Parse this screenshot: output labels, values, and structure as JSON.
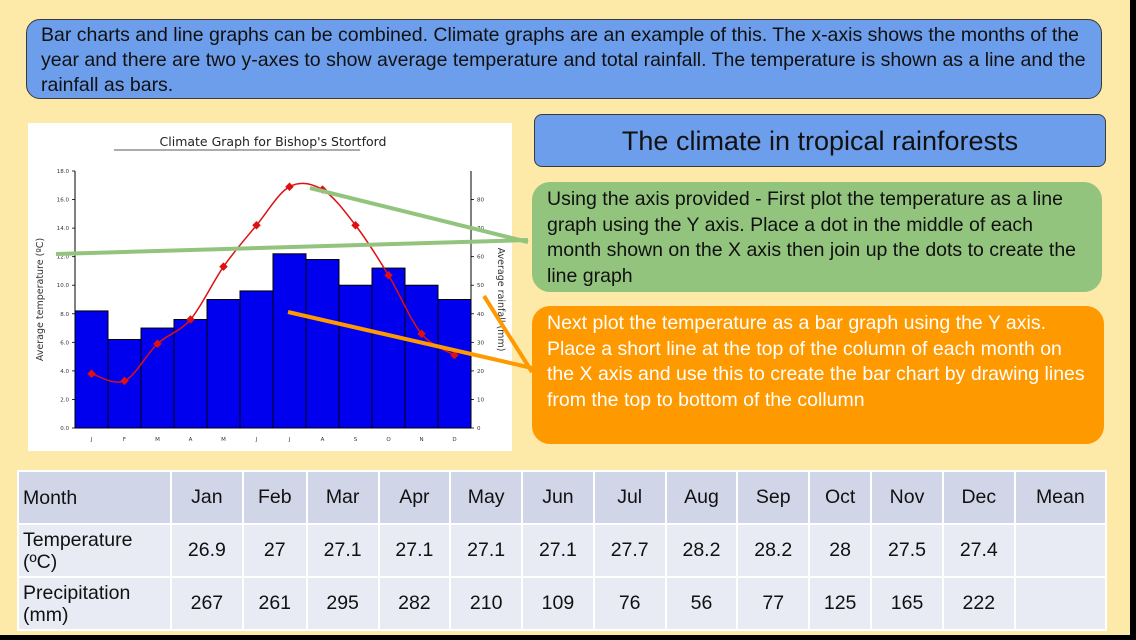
{
  "intro_text": "Bar charts and line graphs can be combined. Climate graphs are an example of this. The x-axis shows the months of the year and there are two y-axes to show average temperature and total rainfall. The temperature is shown as a line and the rainfall as bars.",
  "panel_title": "The climate in tropical rainforests",
  "instruction_line": "Using the axis provided - First plot the temperature as a line graph using the Y axis. Place a dot in the middle of each month shown on the X axis then join up the dots to create the line graph",
  "instruction_bar": "Next plot the temperature as a bar graph using the Y axis. Place a short line at the top of the column of each month on the X axis and use this to create the bar chart by drawing lines from the top to bottom of the collumn",
  "colors": {
    "blue_box": "#6d9eeb",
    "green_box": "#93c47d",
    "orange_box": "#ff9900",
    "bars": "#0000ee",
    "line": "#dd1111"
  },
  "chart_data": {
    "type": "bar",
    "title": "Climate Graph for Bishop's Stortford",
    "ylabel": "Average temperature (ºC)",
    "y2label": "Average rainfall (mm)",
    "categories": [
      "J",
      "F",
      "M",
      "A",
      "M",
      "J",
      "J",
      "A",
      "S",
      "O",
      "N",
      "D"
    ],
    "ylim": [
      0,
      18
    ],
    "y2lim": [
      0,
      90
    ],
    "y_ticks": [
      "0.0",
      "2.0",
      "4.0",
      "6.0",
      "8.0",
      "10.0",
      "12.0",
      "14.0",
      "16.0",
      "18.0"
    ],
    "y2_ticks": [
      "0",
      "10",
      "20",
      "30",
      "40",
      "50",
      "60",
      "70",
      "80"
    ],
    "series": [
      {
        "kind": "bar",
        "axis": "y2",
        "values": [
          41,
          31,
          35,
          38,
          45,
          48,
          61,
          59,
          50,
          56,
          50,
          45
        ]
      },
      {
        "kind": "line",
        "axis": "y",
        "values": [
          3.8,
          3.3,
          5.9,
          7.6,
          11.3,
          14.2,
          16.9,
          16.7,
          14.2,
          10.7,
          6.6,
          5.1
        ]
      }
    ],
    "grid": false
  },
  "table": {
    "headers": [
      "Month",
      "Jan",
      "Feb",
      "Mar",
      "Apr",
      "May",
      "Jun",
      "Jul",
      "Aug",
      "Sep",
      "Oct",
      "Nov",
      "Dec",
      "Mean"
    ],
    "temperature_label": "Temperature (ºC)",
    "temperature": [
      "26.9",
      "27",
      "27.1",
      "27.1",
      "27.1",
      "27.1",
      "27.7",
      "28.2",
      "28.2",
      "28",
      "27.5",
      "27.4",
      ""
    ],
    "precipitation_label": "Precipitation (mm)",
    "precipitation": [
      "267",
      "261",
      "295",
      "282",
      "210",
      "109",
      "76",
      "56",
      "77",
      "125",
      "165",
      "222",
      ""
    ]
  }
}
